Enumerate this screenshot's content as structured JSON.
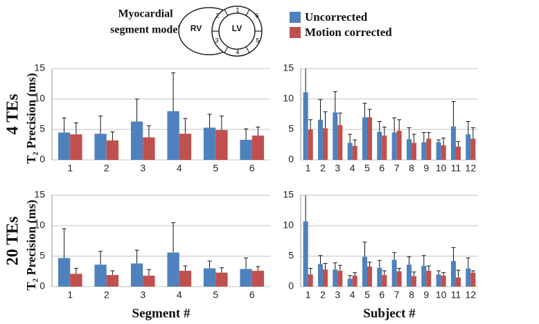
{
  "diagram": {
    "title_lines": [
      "Myocardial",
      "segment model"
    ],
    "chambers": [
      "RV",
      "LV"
    ],
    "segments": [
      "1",
      "2",
      "3",
      "4",
      "5",
      "6"
    ]
  },
  "chart_data": [
    {
      "type": "bar",
      "row_label": "4 TEs",
      "ylabel": "T₂ Precision (ms)",
      "categories": [
        "1",
        "2",
        "3",
        "4",
        "5",
        "6"
      ],
      "series": [
        {
          "name": "Uncorrected",
          "color": "#4f81bd",
          "values": [
            4.5,
            4.3,
            6.3,
            8.0,
            5.3,
            3.3
          ],
          "errors": [
            2.4,
            2.9,
            3.7,
            6.3,
            2.2,
            1.8
          ]
        },
        {
          "name": "Motion corrected",
          "color": "#c0504d",
          "values": [
            4.2,
            3.2,
            3.7,
            4.3,
            4.9,
            4.0
          ],
          "errors": [
            1.9,
            1.4,
            1.9,
            2.5,
            2.3,
            1.4
          ]
        }
      ],
      "ylim": [
        0,
        15
      ],
      "yticks": [
        0,
        5,
        10,
        15
      ],
      "grid": true
    },
    {
      "type": "bar",
      "categories": [
        "1",
        "2",
        "3",
        "4",
        "5",
        "6",
        "7",
        "8",
        "9",
        "10",
        "11",
        "12"
      ],
      "series": [
        {
          "name": "Uncorrected",
          "color": "#4f81bd",
          "values": [
            11.1,
            6.6,
            7.8,
            2.8,
            7.0,
            4.6,
            4.5,
            3.4,
            2.9,
            2.9,
            5.5,
            4.2
          ],
          "errors": [
            4.5,
            3.3,
            3.4,
            1.4,
            2.3,
            1.7,
            2.4,
            1.9,
            1.6,
            0.4,
            4.1,
            2.1
          ]
        },
        {
          "name": "Motion corrected",
          "color": "#c0504d",
          "values": [
            5.0,
            5.2,
            5.7,
            2.3,
            7.0,
            4.0,
            4.8,
            2.8,
            3.5,
            2.4,
            2.2,
            3.5
          ],
          "errors": [
            1.6,
            2.7,
            2.0,
            1.0,
            1.3,
            1.4,
            1.8,
            1.4,
            1.0,
            1.2,
            0.8,
            1.8
          ]
        }
      ],
      "ylim": [
        0,
        15
      ],
      "yticks": [
        0,
        5,
        10,
        15
      ],
      "grid": true
    },
    {
      "type": "bar",
      "row_label": "20 TEs",
      "ylabel": "T₂ Precision (ms)",
      "xlabel": "Segment #",
      "categories": [
        "1",
        "2",
        "3",
        "4",
        "5",
        "6"
      ],
      "series": [
        {
          "name": "Uncorrected",
          "color": "#4f81bd",
          "values": [
            4.7,
            3.6,
            3.8,
            5.6,
            3.0,
            2.9
          ],
          "errors": [
            4.8,
            2.2,
            2.2,
            4.9,
            1.2,
            1.8
          ]
        },
        {
          "name": "Motion corrected",
          "color": "#c0504d",
          "values": [
            2.1,
            1.9,
            1.8,
            2.6,
            2.3,
            2.6
          ],
          "errors": [
            0.9,
            0.7,
            1.0,
            0.8,
            0.8,
            0.7
          ]
        }
      ],
      "ylim": [
        0,
        15
      ],
      "yticks": [
        0,
        5,
        10,
        15
      ],
      "grid": true
    },
    {
      "type": "bar",
      "xlabel": "Subject #",
      "categories": [
        "1",
        "2",
        "3",
        "4",
        "5",
        "6",
        "7",
        "8",
        "9",
        "10",
        "11",
        "12"
      ],
      "series": [
        {
          "name": "Uncorrected",
          "color": "#4f81bd",
          "values": [
            10.7,
            3.7,
            2.8,
            1.3,
            4.9,
            3.1,
            4.4,
            3.6,
            3.4,
            2.0,
            4.2,
            3.0
          ],
          "errors": [
            4.5,
            1.4,
            1.1,
            0.5,
            2.4,
            1.2,
            1.2,
            1.3,
            1.7,
            0.6,
            2.2,
            1.7
          ]
        },
        {
          "name": "Motion corrected",
          "color": "#c0504d",
          "values": [
            2.0,
            2.8,
            2.6,
            1.8,
            3.3,
            1.9,
            2.5,
            1.7,
            2.6,
            1.8,
            1.5,
            2.3
          ],
          "errors": [
            1.0,
            1.0,
            0.9,
            0.5,
            0.7,
            0.7,
            0.5,
            0.7,
            0.8,
            0.5,
            1.2,
            0.3
          ]
        }
      ],
      "ylim": [
        0,
        15
      ],
      "yticks": [
        0,
        5,
        10,
        15
      ],
      "grid": true
    }
  ]
}
